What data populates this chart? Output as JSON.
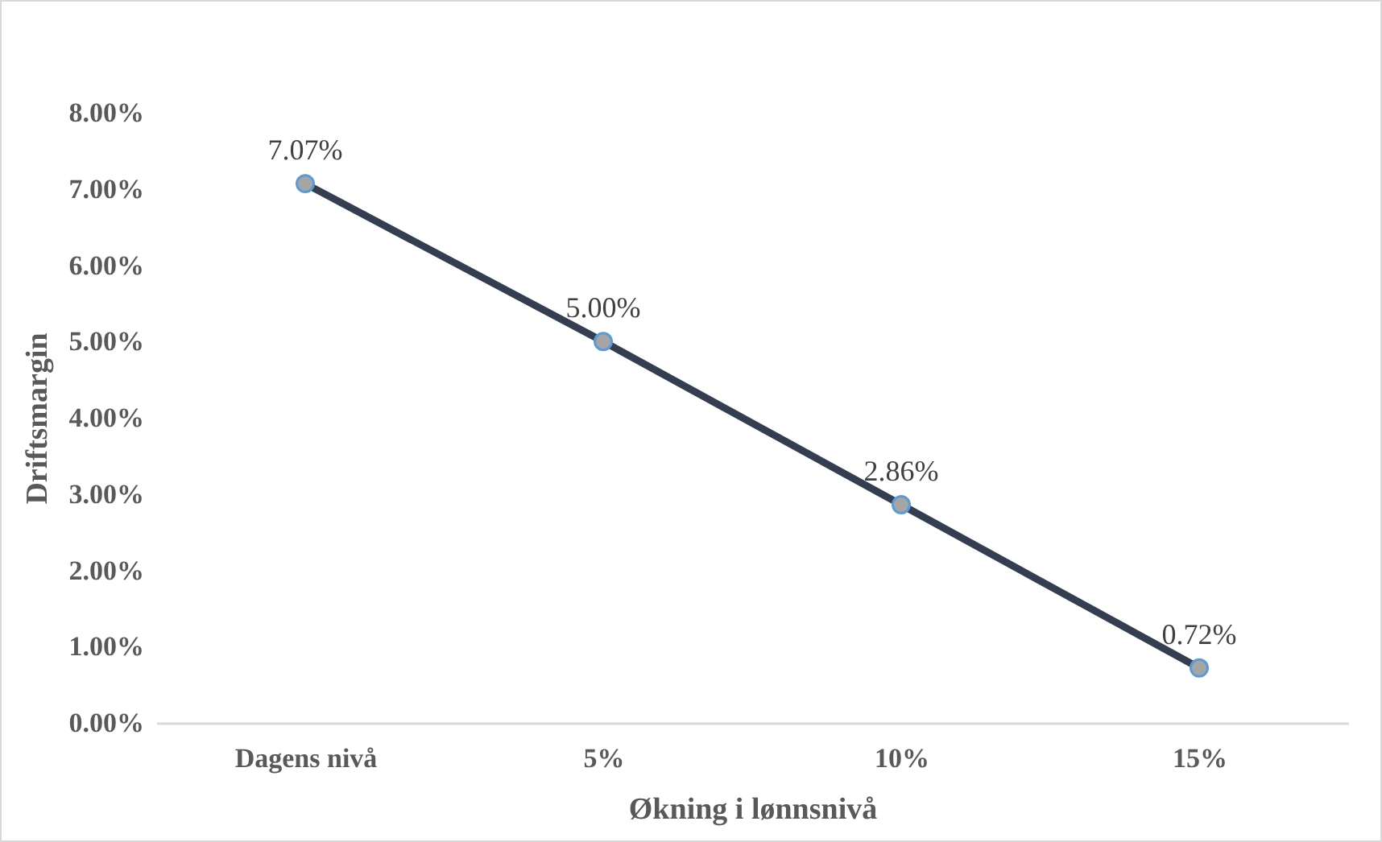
{
  "chart_data": {
    "type": "line",
    "xlabel": "Økning i lønnsnivå",
    "ylabel": "Driftsmargin",
    "categories": [
      "Dagens nivå",
      "5%",
      "10%",
      "15%"
    ],
    "series": [
      {
        "color": "#333f50",
        "values": [
          7.07,
          5.0,
          2.86,
          0.72
        ],
        "value_labels": [
          "7.07%",
          "5.00%",
          "2.86%",
          "0.72%"
        ]
      }
    ],
    "ylim": [
      0,
      8
    ],
    "yticks": [
      {
        "value": 0,
        "label": "0.00%"
      },
      {
        "value": 1,
        "label": "1.00%"
      },
      {
        "value": 2,
        "label": "2.00%"
      },
      {
        "value": 3,
        "label": "3.00%"
      },
      {
        "value": 4,
        "label": "4.00%"
      },
      {
        "value": 5,
        "label": "5.00%"
      },
      {
        "value": 6,
        "label": "6.00%"
      },
      {
        "value": 7,
        "label": "7.00%"
      },
      {
        "value": 8,
        "label": "8.00%"
      }
    ],
    "grid": false,
    "legend": false,
    "marker": "circle",
    "line_style": "solid"
  }
}
